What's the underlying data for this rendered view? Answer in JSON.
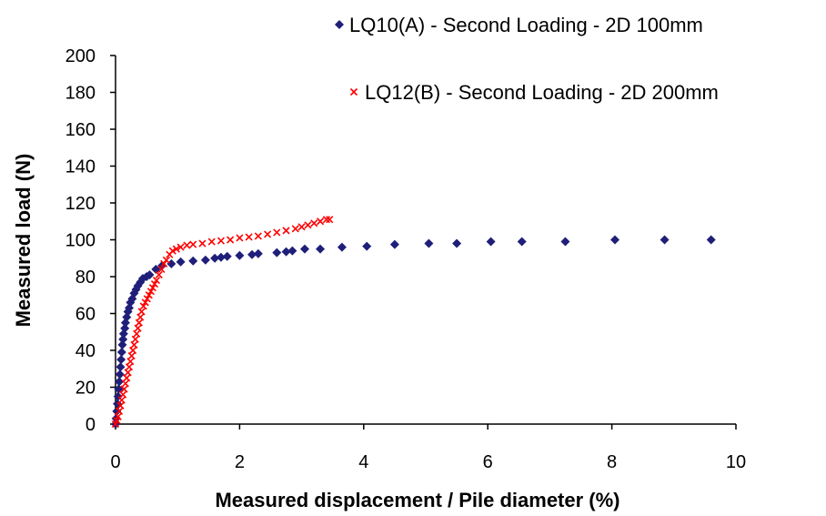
{
  "chart_data": {
    "type": "scatter",
    "title": "",
    "xlabel": "Measured displacement / Pile diameter (%)",
    "ylabel": "Measured load (N)",
    "xlim": [
      0,
      10
    ],
    "ylim": [
      0,
      200
    ],
    "xticks": [
      "0",
      "2",
      "4",
      "6",
      "8",
      "10"
    ],
    "yticks": [
      "0",
      "20",
      "40",
      "60",
      "80",
      "100",
      "120",
      "140",
      "160",
      "180",
      "200"
    ],
    "grid": false,
    "legend_position": "top-right",
    "series": [
      {
        "name": "LQ10(A) - Second Loading - 2D 100mm",
        "marker": "diamond",
        "color": "#1f1f7a",
        "points": [
          [
            0.0,
            0
          ],
          [
            0.01,
            3
          ],
          [
            0.02,
            7
          ],
          [
            0.03,
            11
          ],
          [
            0.04,
            15
          ],
          [
            0.05,
            19
          ],
          [
            0.06,
            23
          ],
          [
            0.07,
            27
          ],
          [
            0.08,
            31
          ],
          [
            0.09,
            35
          ],
          [
            0.1,
            39
          ],
          [
            0.11,
            43
          ],
          [
            0.12,
            46
          ],
          [
            0.13,
            49
          ],
          [
            0.15,
            52
          ],
          [
            0.16,
            55
          ],
          [
            0.18,
            58
          ],
          [
            0.2,
            61
          ],
          [
            0.22,
            63
          ],
          [
            0.24,
            66
          ],
          [
            0.27,
            68
          ],
          [
            0.3,
            71
          ],
          [
            0.33,
            73
          ],
          [
            0.36,
            75
          ],
          [
            0.4,
            77
          ],
          [
            0.44,
            79
          ],
          [
            0.5,
            80
          ],
          [
            0.55,
            81
          ],
          [
            0.65,
            84
          ],
          [
            0.75,
            86
          ],
          [
            0.9,
            87
          ],
          [
            1.05,
            88
          ],
          [
            1.25,
            88.5
          ],
          [
            1.45,
            89
          ],
          [
            1.6,
            90
          ],
          [
            1.7,
            90.5
          ],
          [
            1.8,
            91
          ],
          [
            2.0,
            91.5
          ],
          [
            2.2,
            92
          ],
          [
            2.3,
            92.5
          ],
          [
            2.6,
            93
          ],
          [
            2.75,
            93.5
          ],
          [
            2.85,
            94
          ],
          [
            3.05,
            95
          ],
          [
            3.3,
            95
          ],
          [
            3.65,
            96
          ],
          [
            4.05,
            96.5
          ],
          [
            4.5,
            97.5
          ],
          [
            5.05,
            98
          ],
          [
            5.5,
            98
          ],
          [
            6.05,
            99
          ],
          [
            6.55,
            99
          ],
          [
            7.25,
            99
          ],
          [
            8.05,
            100
          ],
          [
            8.85,
            100
          ],
          [
            9.6,
            100
          ]
        ]
      },
      {
        "name": "LQ12(B) - Second Loading - 2D 200mm",
        "marker": "x",
        "color": "#ff0000",
        "points": [
          [
            0.0,
            0
          ],
          [
            0.02,
            2
          ],
          [
            0.04,
            4
          ],
          [
            0.06,
            7
          ],
          [
            0.08,
            10
          ],
          [
            0.1,
            13
          ],
          [
            0.12,
            16
          ],
          [
            0.14,
            19
          ],
          [
            0.16,
            22
          ],
          [
            0.18,
            25
          ],
          [
            0.2,
            28
          ],
          [
            0.22,
            31
          ],
          [
            0.24,
            34
          ],
          [
            0.26,
            37
          ],
          [
            0.28,
            40
          ],
          [
            0.3,
            43
          ],
          [
            0.32,
            46
          ],
          [
            0.34,
            49
          ],
          [
            0.36,
            52
          ],
          [
            0.38,
            55
          ],
          [
            0.4,
            58
          ],
          [
            0.42,
            61
          ],
          [
            0.45,
            64
          ],
          [
            0.48,
            66
          ],
          [
            0.51,
            68
          ],
          [
            0.54,
            70
          ],
          [
            0.57,
            72
          ],
          [
            0.6,
            74
          ],
          [
            0.63,
            76
          ],
          [
            0.66,
            78
          ],
          [
            0.7,
            81
          ],
          [
            0.74,
            84
          ],
          [
            0.78,
            87
          ],
          [
            0.82,
            89
          ],
          [
            0.87,
            92
          ],
          [
            0.92,
            94
          ],
          [
            0.98,
            95
          ],
          [
            1.05,
            96
          ],
          [
            1.15,
            97
          ],
          [
            1.25,
            97.5
          ],
          [
            1.4,
            98
          ],
          [
            1.55,
            99
          ],
          [
            1.7,
            99.5
          ],
          [
            1.85,
            100
          ],
          [
            2.0,
            101
          ],
          [
            2.15,
            101.5
          ],
          [
            2.3,
            102
          ],
          [
            2.45,
            103
          ],
          [
            2.6,
            104
          ],
          [
            2.75,
            105
          ],
          [
            2.9,
            106
          ],
          [
            3.0,
            107
          ],
          [
            3.1,
            108
          ],
          [
            3.2,
            109
          ],
          [
            3.3,
            110
          ],
          [
            3.4,
            111
          ],
          [
            3.45,
            111
          ]
        ]
      }
    ]
  }
}
